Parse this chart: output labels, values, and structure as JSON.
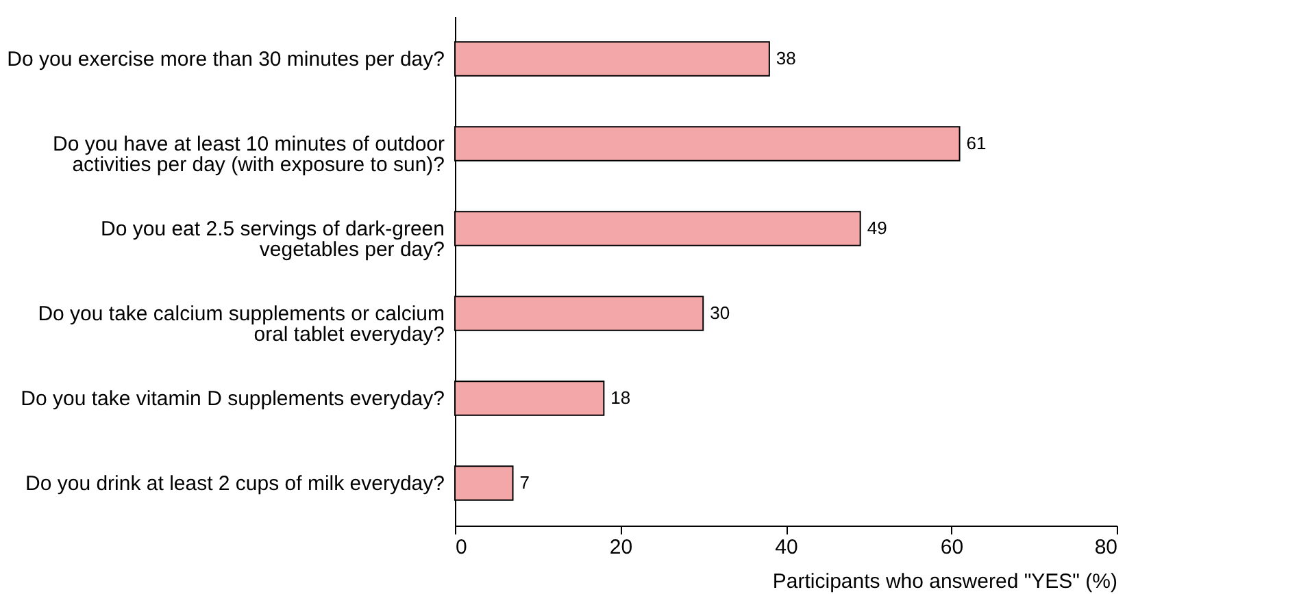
{
  "chart_data": {
    "type": "bar",
    "orientation": "horizontal",
    "xlabel": "Participants who answered \"YES\" (%)",
    "categories": [
      "Do you exercise more than 30 minutes per day?",
      "Do you have at least 10 minutes of outdoor\nactivities per day (with exposure to sun)?",
      "Do you eat 2.5 servings of dark-green\nvegetables per day?",
      "Do you take calcium supplements or calcium\noral tablet everyday?",
      "Do you take vitamin D supplements everyday?",
      "Do you drink at least 2 cups of milk everyday?"
    ],
    "values": [
      38,
      61,
      49,
      30,
      18,
      7
    ],
    "color": "#f4a7a9",
    "data_labels": true,
    "grid": false,
    "xlim": [
      0,
      80
    ],
    "xticks": [
      0,
      20,
      40,
      60,
      80
    ]
  }
}
